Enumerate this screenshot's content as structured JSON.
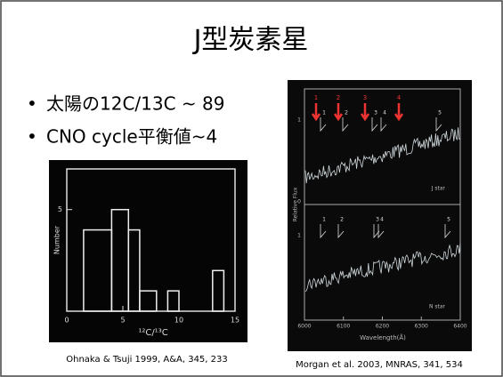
{
  "title": "J型炭素星",
  "bullets": [
    "太陽の12C/13C ~ 89",
    "CNO cycle平衡値~4"
  ],
  "figures": [
    {
      "type": "histogram",
      "y_label": "Number",
      "x_label": "¹²C/¹³C",
      "bins": [
        1.5,
        4,
        5.5,
        6.5,
        8,
        9,
        10,
        13,
        14
      ],
      "counts": [
        4,
        5,
        4,
        1,
        0,
        1,
        0,
        2
      ],
      "xlim": [
        0,
        15
      ],
      "ylim": [
        0,
        7
      ],
      "xticks": [
        0,
        5,
        10,
        15
      ],
      "yticks": [
        5
      ],
      "caption": "Ohnaka & Tsuji 1999, A&A, 345, 233"
    },
    {
      "type": "spectrum",
      "y_label": "Relative Flux",
      "x_label": "Wavelength(Å)",
      "xticks": [
        6000,
        6100,
        6200,
        6300,
        6400
      ],
      "yticks": [
        1,
        0,
        1
      ],
      "panels": [
        "J star",
        "N star"
      ],
      "red_markers": [
        "1",
        "2",
        "3",
        "4"
      ],
      "markers": [
        "1",
        "2",
        "3",
        "4",
        "5"
      ],
      "caption": "Morgan et al. 2003, MNRAS, 341, 534"
    }
  ]
}
